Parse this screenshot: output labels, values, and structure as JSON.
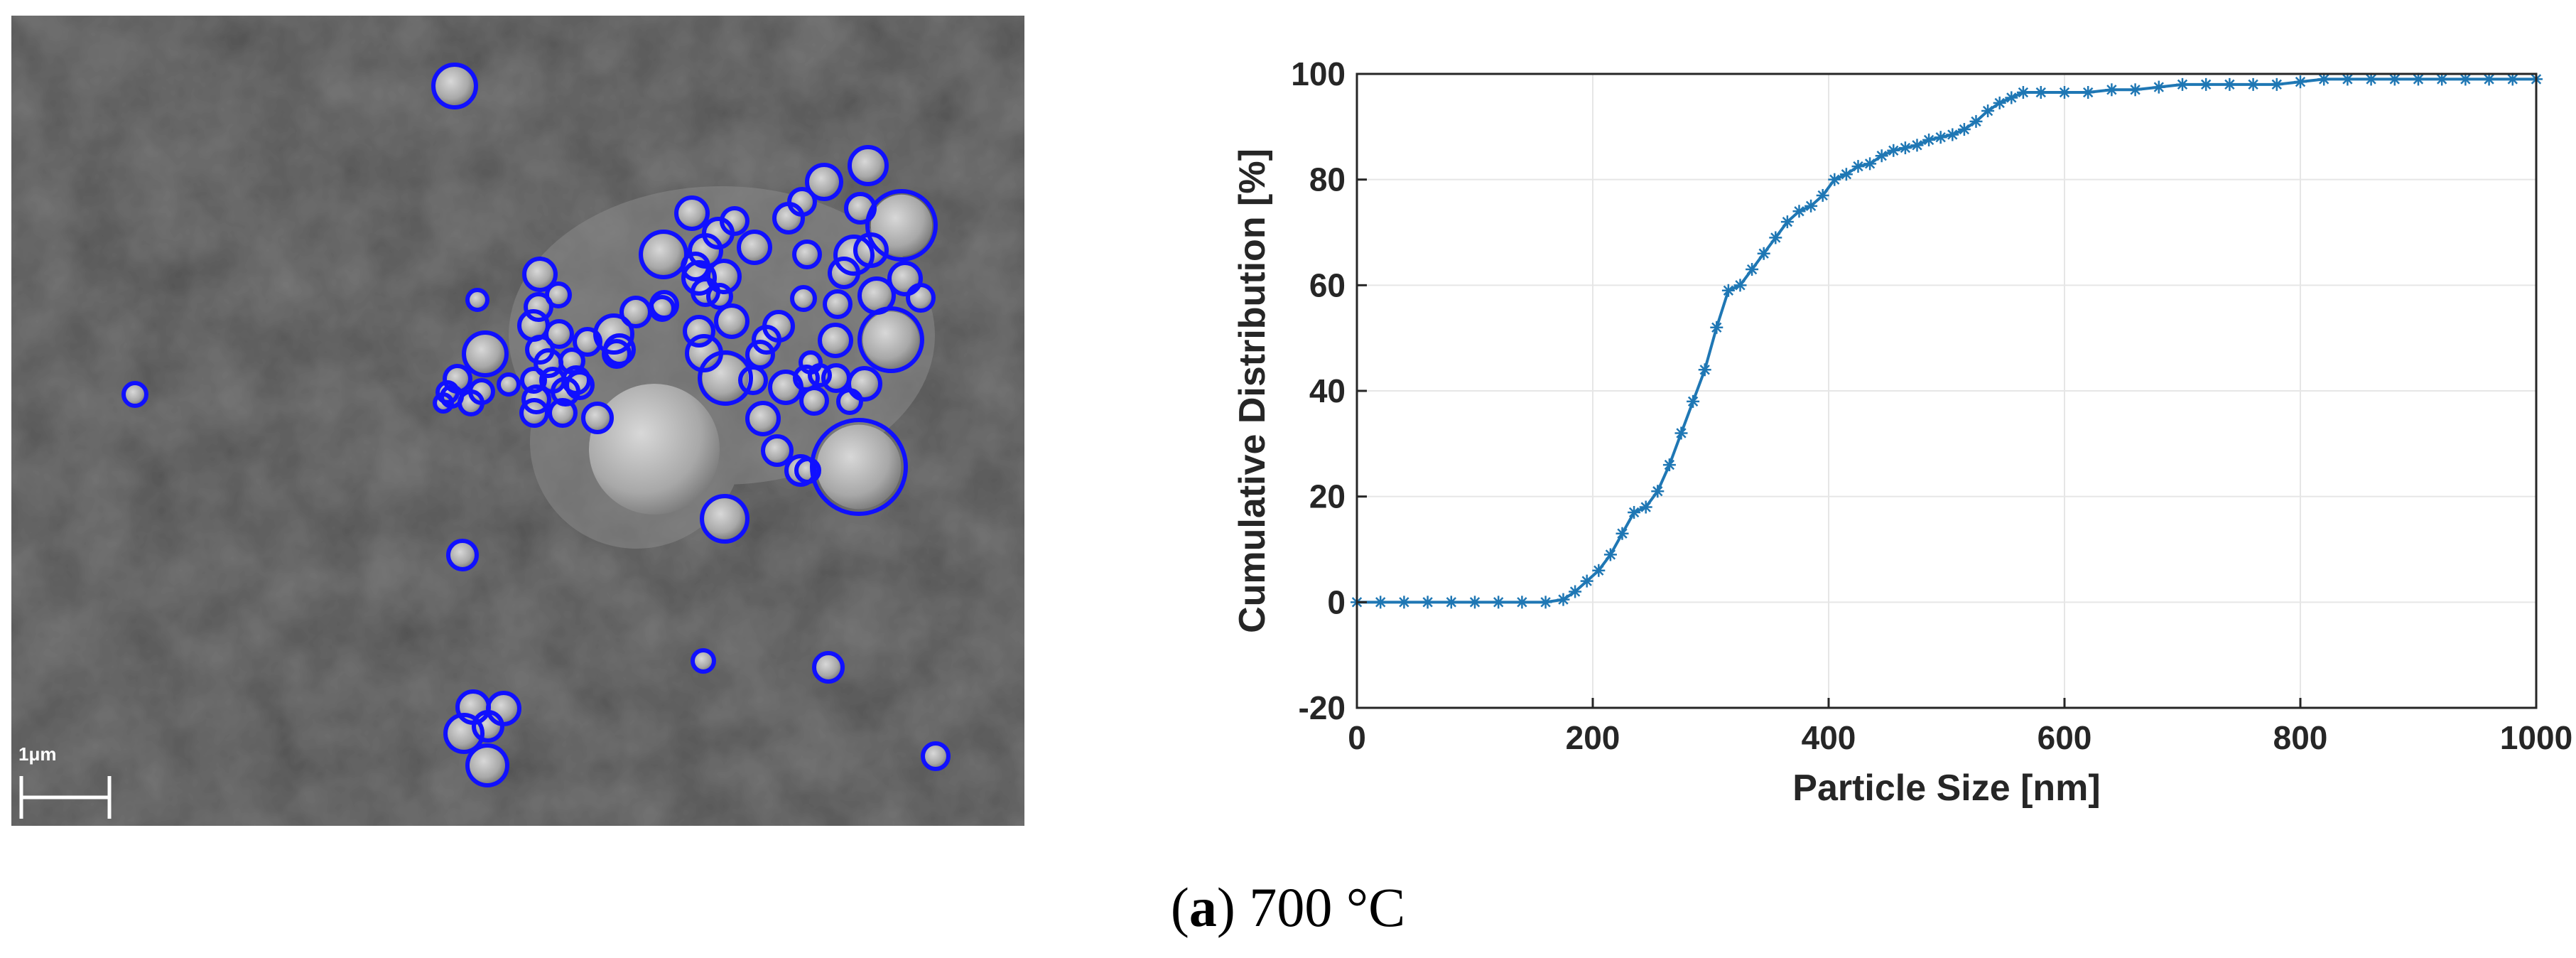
{
  "figure": {
    "caption_label": "a",
    "caption_text": "700 °C"
  },
  "sem_image": {
    "scale_bar_label": "1μm",
    "background_color": "#4a4a4a",
    "circle_color": "#1010ff"
  },
  "chart_data": {
    "type": "line",
    "xlabel": "Particle Size [nm]",
    "ylabel": "Cumulative Distribution [%]",
    "xlim": [
      0,
      1000
    ],
    "ylim": [
      -20,
      100
    ],
    "xticks": [
      0,
      200,
      400,
      600,
      800,
      1000
    ],
    "yticks": [
      -20,
      0,
      20,
      40,
      60,
      80,
      100
    ],
    "grid": true,
    "line_color": "#1f77b4",
    "marker": "asterisk",
    "series": [
      {
        "x": [
          0,
          20,
          40,
          60,
          80,
          100,
          120,
          140,
          160,
          175,
          185,
          195,
          205,
          215,
          225,
          235,
          245,
          255,
          265,
          275,
          285,
          295,
          305,
          315,
          325,
          335,
          345,
          355,
          365,
          375,
          385,
          395,
          405,
          415,
          425,
          435,
          445,
          455,
          465,
          475,
          485,
          495,
          505,
          515,
          525,
          535,
          545,
          555,
          565,
          580,
          600,
          620,
          640,
          660,
          680,
          700,
          720,
          740,
          760,
          780,
          800,
          820,
          840,
          860,
          880,
          900,
          920,
          940,
          960,
          980,
          1000
        ],
        "y": [
          0,
          0,
          0,
          0,
          0,
          0,
          0,
          0,
          0,
          0.5,
          2,
          4,
          6,
          9,
          13,
          17,
          18,
          21,
          26,
          32,
          38,
          44,
          52,
          59,
          60,
          63,
          66,
          69,
          72,
          74,
          75,
          77,
          80,
          81,
          82.5,
          83,
          84.5,
          85.5,
          86,
          86.5,
          87.5,
          88,
          88.5,
          89.5,
          91,
          93,
          94.5,
          95.5,
          96.5,
          96.5,
          96.5,
          96.5,
          97,
          97,
          97.5,
          98,
          98,
          98,
          98,
          98,
          98.5,
          99,
          99,
          99,
          99,
          99,
          99,
          99,
          99,
          99,
          99
        ]
      }
    ]
  }
}
